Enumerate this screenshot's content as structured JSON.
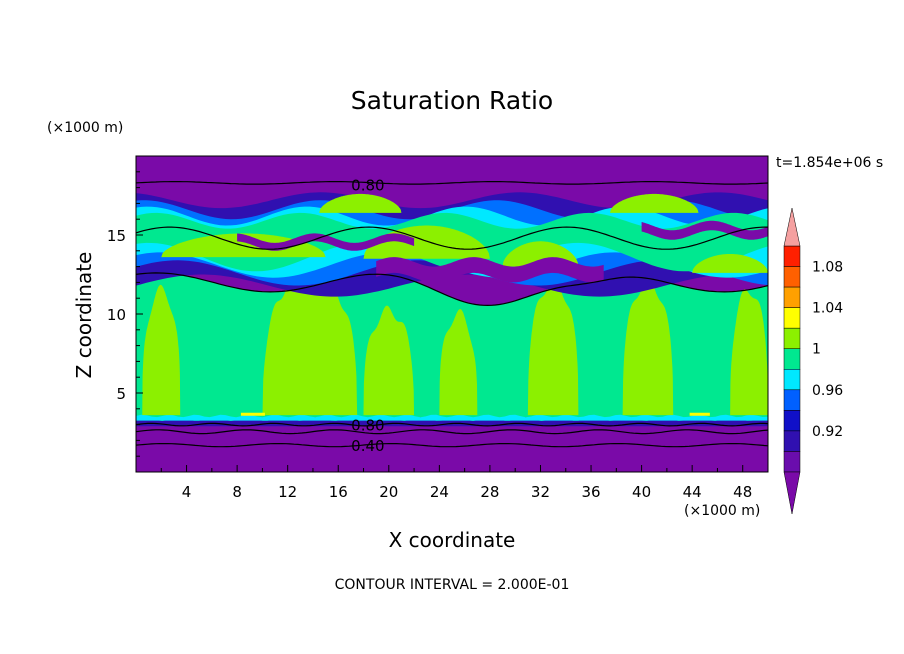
{
  "chart_data": {
    "type": "heatmap",
    "title": "Saturation Ratio",
    "xlabel": "X coordinate",
    "ylabel": "Z coordinate",
    "x_units": "(×1000 m)",
    "y_units": "(×1000 m)",
    "time_label": "t=1.854e+06 s",
    "contour_interval_label": "CONTOUR INTERVAL = 2.000E-01",
    "xlim": [
      0,
      50
    ],
    "ylim": [
      0,
      20
    ],
    "x_ticks": [
      4,
      8,
      12,
      16,
      20,
      24,
      28,
      32,
      36,
      40,
      44,
      48
    ],
    "y_ticks": [
      5,
      10,
      15
    ],
    "contour_labels": [
      {
        "text": "0.80",
        "x": 17,
        "y": 18.2
      },
      {
        "text": "0.80",
        "x": 17,
        "y": 3.0
      },
      {
        "text": "0.40",
        "x": 17,
        "y": 1.7
      }
    ],
    "colorbar": {
      "levels": [
        0.92,
        0.96,
        1,
        1.04,
        1.08
      ],
      "bins": [
        "#6a0dad",
        "#3010b0",
        "#1010c8",
        "#0060ff",
        "#00e8ff",
        "#00e890",
        "#8cf000",
        "#ffff00",
        "#ffa000",
        "#ff6000",
        "#ff2000"
      ],
      "overflow_color": "#f5a0a0",
      "underflow_color": "#7a0aa8"
    },
    "colors": {
      "dry": "#7a0aa8",
      "deep": "#3010b0",
      "blue": "#1020d0",
      "light_blue": "#0070ff",
      "cyan": "#00e8ff",
      "green": "#00e890",
      "lime": "#8cf000",
      "yellow": "#ffff00"
    }
  }
}
